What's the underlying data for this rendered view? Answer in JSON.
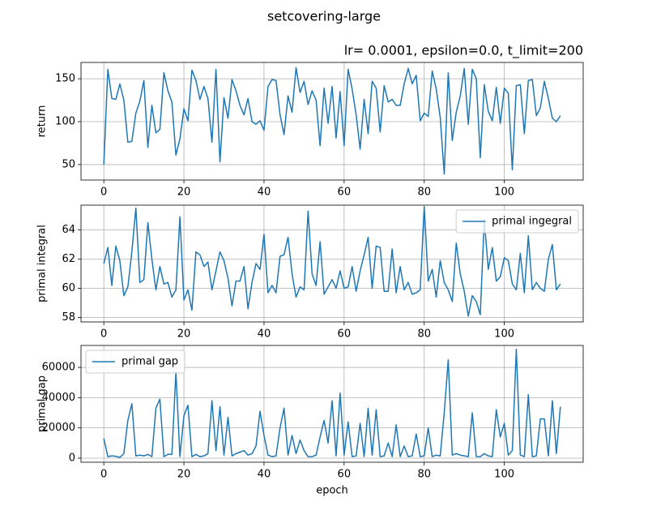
{
  "title": "setcovering-large",
  "chart_data": [
    {
      "type": "line",
      "title": "lr= 0.0001, epsilon=0.0, t_limit=200",
      "ylabel": "return",
      "grid": true,
      "x": [
        0,
        1,
        2,
        3,
        4,
        5,
        6,
        7,
        8,
        9,
        10,
        11,
        12,
        13,
        14,
        15,
        16,
        17,
        18,
        19,
        20,
        21,
        22,
        23,
        24,
        25,
        26,
        27,
        28,
        29,
        30,
        31,
        32,
        33,
        34,
        35,
        36,
        37,
        38,
        39,
        40,
        41,
        42,
        43,
        44,
        45,
        46,
        47,
        48,
        49,
        50,
        51,
        52,
        53,
        54,
        55,
        56,
        57,
        58,
        59,
        60,
        61,
        62,
        63,
        64,
        65,
        66,
        67,
        68,
        69,
        70,
        71,
        72,
        73,
        74,
        75,
        76,
        77,
        78,
        79,
        80,
        81,
        82,
        83,
        84,
        85,
        86,
        87,
        88,
        89,
        90,
        91,
        92,
        93,
        94,
        95,
        96,
        97,
        98,
        99,
        100,
        101,
        102,
        103,
        104,
        105,
        106,
        107,
        108,
        109,
        110,
        111,
        112,
        113,
        114
      ],
      "series": [
        {
          "color": "#1f77b4",
          "values": [
            50,
            161,
            127,
            126,
            144,
            125,
            76,
            77,
            110,
            124,
            148,
            70,
            119,
            87,
            91,
            157,
            136,
            123,
            61,
            80,
            115,
            101,
            160,
            148,
            126,
            141,
            127,
            76,
            161,
            53,
            128,
            104,
            149,
            136,
            119,
            108,
            127,
            100,
            97,
            101,
            90,
            141,
            149,
            148,
            108,
            85,
            130,
            111,
            163,
            134,
            147,
            120,
            136,
            125,
            72,
            139,
            98,
            141,
            81,
            135,
            72,
            161,
            138,
            108,
            68,
            126,
            86,
            147,
            139,
            88,
            142,
            123,
            126,
            119,
            119,
            144,
            162,
            144,
            154,
            101,
            110,
            106,
            159,
            138,
            105,
            39,
            157,
            78,
            111,
            130,
            162,
            97,
            161,
            150,
            58,
            143,
            112,
            101,
            140,
            98,
            139,
            133,
            44,
            142,
            143,
            86,
            148,
            149,
            107,
            116,
            147,
            127,
            104,
            100,
            107
          ]
        }
      ],
      "xlim": [
        -5.7,
        119.7
      ],
      "xticks": [
        0,
        20,
        40,
        60,
        80,
        100
      ],
      "ylim": [
        32,
        169
      ],
      "yticks": [
        50,
        100,
        150
      ]
    },
    {
      "type": "line",
      "ylabel": "primal integral",
      "grid": true,
      "legend": "upper right",
      "x": [
        0,
        1,
        2,
        3,
        4,
        5,
        6,
        7,
        8,
        9,
        10,
        11,
        12,
        13,
        14,
        15,
        16,
        17,
        18,
        19,
        20,
        21,
        22,
        23,
        24,
        25,
        26,
        27,
        28,
        29,
        30,
        31,
        32,
        33,
        34,
        35,
        36,
        37,
        38,
        39,
        40,
        41,
        42,
        43,
        44,
        45,
        46,
        47,
        48,
        49,
        50,
        51,
        52,
        53,
        54,
        55,
        56,
        57,
        58,
        59,
        60,
        61,
        62,
        63,
        64,
        65,
        66,
        67,
        68,
        69,
        70,
        71,
        72,
        73,
        74,
        75,
        76,
        77,
        78,
        79,
        80,
        81,
        82,
        83,
        84,
        85,
        86,
        87,
        88,
        89,
        90,
        91,
        92,
        93,
        94,
        95,
        96,
        97,
        98,
        99,
        100,
        101,
        102,
        103,
        104,
        105,
        106,
        107,
        108,
        109,
        110,
        111,
        112,
        113,
        114
      ],
      "series": [
        {
          "name": "primal ingegral",
          "color": "#1f77b4",
          "values": [
            61.7,
            62.8,
            60.2,
            62.9,
            61.9,
            59.5,
            60.1,
            62.5,
            65.5,
            60.4,
            60.6,
            64.5,
            62.0,
            59.9,
            61.5,
            60.3,
            60.4,
            59.4,
            59.9,
            64.9,
            59.2,
            59.9,
            58.5,
            62.5,
            62.3,
            61.5,
            61.8,
            59.9,
            61.2,
            62.5,
            61.9,
            60.7,
            58.8,
            60.5,
            60.5,
            61.5,
            58.6,
            60.4,
            61.7,
            61.3,
            63.7,
            59.7,
            60.2,
            59.7,
            62.2,
            62.3,
            63.5,
            61.0,
            59.4,
            60.1,
            59.9,
            65.3,
            61.0,
            60.2,
            63.2,
            59.6,
            60.1,
            60.6,
            60.0,
            61.2,
            60.0,
            60.1,
            61.5,
            59.8,
            61.2,
            62.3,
            63.5,
            60.0,
            62.9,
            62.8,
            59.8,
            59.8,
            62.7,
            59.7,
            61.5,
            59.9,
            60.4,
            59.6,
            59.7,
            59.9,
            65.6,
            60.5,
            61.3,
            59.4,
            61.9,
            60.4,
            59.9,
            59.1,
            63.1,
            61.0,
            59.8,
            58.1,
            59.5,
            59.1,
            58.2,
            64.7,
            61.3,
            62.8,
            60.5,
            60.8,
            62.1,
            61.9,
            60.3,
            59.9,
            62.4,
            59.7,
            63.6,
            59.9,
            60.4,
            60.0,
            59.8,
            62.0,
            63.0,
            59.9,
            60.3
          ]
        }
      ],
      "xlim": [
        -5.7,
        119.7
      ],
      "xticks": [
        0,
        20,
        40,
        60,
        80,
        100
      ],
      "ylim": [
        57.7,
        65.7
      ],
      "yticks": [
        58,
        60,
        62,
        64
      ]
    },
    {
      "type": "line",
      "ylabel": "primal gap",
      "xlabel": "epoch",
      "grid": true,
      "legend": "upper left",
      "x": [
        0,
        1,
        2,
        3,
        4,
        5,
        6,
        7,
        8,
        9,
        10,
        11,
        12,
        13,
        14,
        15,
        16,
        17,
        18,
        19,
        20,
        21,
        22,
        23,
        24,
        25,
        26,
        27,
        28,
        29,
        30,
        31,
        32,
        33,
        34,
        35,
        36,
        37,
        38,
        39,
        40,
        41,
        42,
        43,
        44,
        45,
        46,
        47,
        48,
        49,
        50,
        51,
        52,
        53,
        54,
        55,
        56,
        57,
        58,
        59,
        60,
        61,
        62,
        63,
        64,
        65,
        66,
        67,
        68,
        69,
        70,
        71,
        72,
        73,
        74,
        75,
        76,
        77,
        78,
        79,
        80,
        81,
        82,
        83,
        84,
        85,
        86,
        87,
        88,
        89,
        90,
        91,
        92,
        93,
        94,
        95,
        96,
        97,
        98,
        99,
        100,
        101,
        102,
        103,
        104,
        105,
        106,
        107,
        108,
        109,
        110,
        111,
        112,
        113,
        114
      ],
      "series": [
        {
          "name": "primal gap",
          "color": "#1f77b4",
          "values": [
            13000,
            1000,
            1500,
            1200,
            500,
            3000,
            25000,
            36000,
            1500,
            2000,
            1500,
            2500,
            1000,
            33000,
            39000,
            1000,
            2500,
            2500,
            57000,
            1000,
            28000,
            35000,
            1000,
            2500,
            1000,
            1500,
            3000,
            38000,
            5000,
            34000,
            2000,
            27000,
            1500,
            3000,
            4000,
            5000,
            2000,
            3000,
            8000,
            31000,
            15000,
            2000,
            1000,
            1500,
            20000,
            33000,
            2000,
            15000,
            3000,
            12000,
            5000,
            1000,
            1000,
            2000,
            14000,
            25000,
            10000,
            38000,
            1500,
            43000,
            2000,
            24000,
            1000,
            1500,
            23000,
            1000,
            33000,
            2000,
            32000,
            1000,
            1500,
            10000,
            1000,
            22000,
            1000,
            8000,
            1000,
            1500,
            16000,
            1000,
            1500,
            20000,
            1000,
            2000,
            1500,
            30000,
            65000,
            2000,
            3000,
            2000,
            1500,
            1000,
            30000,
            1000,
            1000,
            3000,
            1500,
            1000,
            32000,
            14000,
            23000,
            2000,
            5000,
            72000,
            2000,
            1000,
            42000,
            1000,
            1500,
            26000,
            26000,
            1500,
            38000,
            3000,
            34000
          ]
        }
      ],
      "xlim": [
        -5.7,
        119.7
      ],
      "xticks": [
        0,
        20,
        40,
        60,
        80,
        100
      ],
      "ylim": [
        -2700,
        74500
      ],
      "yticks": [
        0,
        20000,
        40000,
        60000
      ]
    }
  ]
}
